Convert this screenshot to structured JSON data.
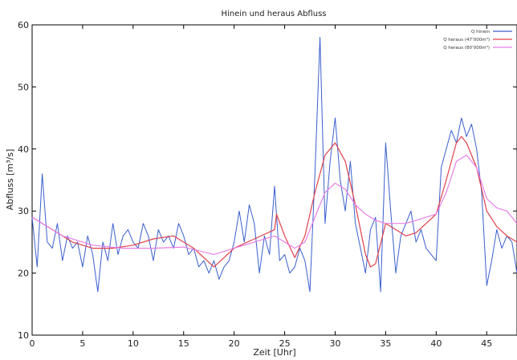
{
  "chart_data": {
    "type": "line",
    "title": "Hinein und heraus Abfluss",
    "xlabel": "Zeit [Uhr]",
    "ylabel": "Abfluss [m³/s]",
    "xlim": [
      0,
      48
    ],
    "ylim": [
      10,
      60
    ],
    "x_ticks": [
      "0",
      "5",
      "10",
      "15",
      "20",
      "25",
      "30",
      "35",
      "40",
      "45"
    ],
    "y_ticks": [
      "10",
      "20",
      "30",
      "40",
      "50",
      "60"
    ],
    "grid": false,
    "legend_position": "top-right",
    "series": [
      {
        "name": "Q hinein",
        "color": "#3a5fcd",
        "x": [
          0,
          0.5,
          1,
          1.5,
          2,
          2.5,
          3,
          3.5,
          4,
          4.5,
          5,
          5.5,
          6,
          6.5,
          7,
          7.5,
          8,
          8.5,
          9,
          9.5,
          10,
          10.5,
          11,
          11.5,
          12,
          12.5,
          13,
          13.5,
          14,
          14.5,
          15,
          15.5,
          16,
          16.5,
          17,
          17.5,
          18,
          18.5,
          19,
          19.5,
          20,
          20.5,
          21,
          21.5,
          22,
          22.5,
          23,
          23.5,
          24,
          24.5,
          25,
          25.5,
          26,
          26.5,
          27,
          27.5,
          28,
          28.5,
          29,
          29.5,
          30,
          30.5,
          31,
          31.5,
          32,
          32.5,
          33,
          33.5,
          34,
          34.5,
          35,
          35.5,
          36,
          36.5,
          37,
          37.5,
          38,
          38.5,
          39,
          39.5,
          40,
          40.5,
          41,
          41.5,
          42,
          42.5,
          43,
          43.5,
          44,
          44.5,
          45,
          45.5,
          46,
          46.5,
          47,
          47.5,
          48
        ],
        "y": [
          29,
          21,
          36,
          25,
          24,
          28,
          22,
          26,
          24,
          25,
          21,
          26,
          23,
          17,
          25,
          22,
          28,
          23,
          26,
          27,
          25,
          24,
          28,
          26,
          22,
          27,
          25,
          26,
          24,
          28,
          26,
          23,
          24,
          21,
          22,
          20,
          22,
          19,
          21,
          22,
          25,
          30,
          25,
          31,
          28,
          20,
          26,
          23,
          34,
          22,
          23,
          20,
          21,
          24,
          22,
          17,
          36,
          58,
          28,
          38,
          45,
          35,
          30,
          38,
          28,
          24,
          20,
          27,
          29,
          17,
          41,
          30,
          20,
          26,
          28,
          30,
          25,
          27,
          24,
          23,
          22,
          37,
          40,
          43,
          41,
          45,
          42,
          44,
          40,
          33,
          18,
          22,
          27,
          24,
          26,
          25,
          20
        ],
        "values_note_free": true
      },
      {
        "name": "Q heraus (47’000m³)",
        "color": "#e0404a",
        "x": [
          0,
          2,
          4,
          6,
          8,
          10,
          12,
          14,
          16,
          18,
          20,
          22,
          24,
          24.2,
          25,
          26,
          27,
          28,
          29,
          30,
          31,
          32,
          33,
          33.5,
          34,
          35,
          36,
          37,
          38,
          39,
          40,
          41,
          42,
          42.5,
          43,
          44,
          45,
          46,
          47,
          48
        ],
        "y": [
          29,
          27,
          25,
          24,
          24,
          24.5,
          25.5,
          26,
          24,
          21,
          24,
          25.5,
          27,
          29.5,
          26,
          22.5,
          26,
          33,
          39,
          41,
          38,
          31,
          23,
          21,
          21.5,
          28,
          27,
          26,
          26.5,
          28,
          29.5,
          35,
          41,
          42,
          41,
          37,
          30,
          27.5,
          26,
          25
        ]
      },
      {
        "name": "Q heraus (80’000m³)",
        "color": "#e77de8",
        "x": [
          0,
          3,
          6,
          9,
          12,
          15,
          18,
          20,
          22,
          24,
          25,
          26,
          27,
          28,
          29,
          30,
          31,
          32,
          33,
          34,
          35,
          36,
          37,
          38,
          39,
          40,
          41,
          42,
          43,
          44,
          45,
          46,
          47,
          48
        ],
        "y": [
          29,
          26,
          24.5,
          24,
          24,
          24.2,
          23,
          24,
          25,
          26,
          25,
          24,
          25,
          29,
          33,
          34.5,
          33.5,
          31,
          29.5,
          28.5,
          28,
          28,
          28,
          28.5,
          29,
          29.5,
          33,
          38,
          39,
          37,
          32,
          30.5,
          30,
          28
        ]
      }
    ]
  }
}
